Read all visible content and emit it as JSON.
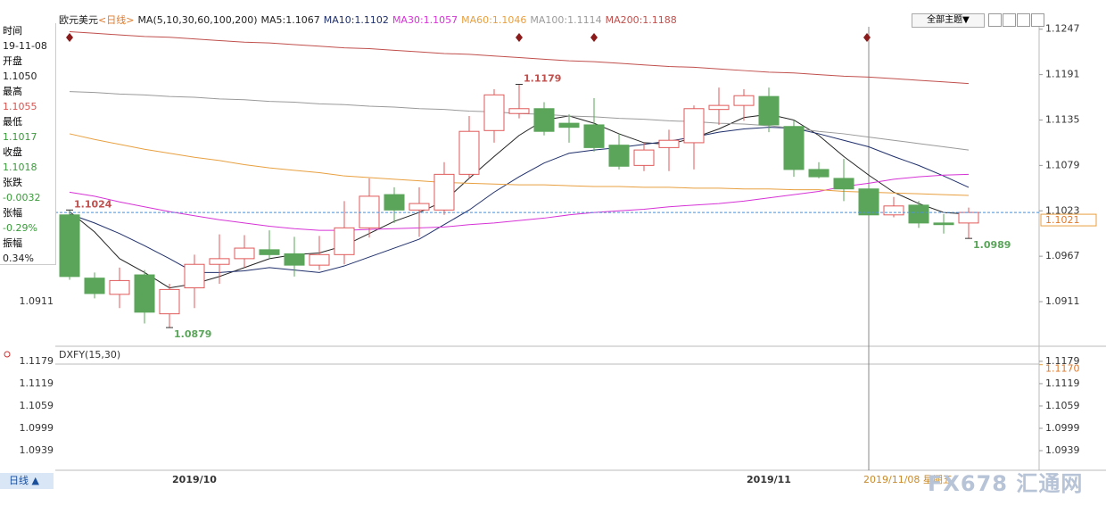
{
  "header": {
    "symbol": "欧元美元",
    "period": "<日线>",
    "indicator": "MA(5,10,30,60,100,200)",
    "toolbar": "全部主题▼"
  },
  "info_panel": {
    "rows": [
      {
        "label": "时间",
        "value": "19-11-08",
        "color": "#222222"
      },
      {
        "label": "开盘",
        "value": "1.1050",
        "color": "#222222"
      },
      {
        "label": "最高",
        "value": "1.1055",
        "color": "#d9534f"
      },
      {
        "label": "最低",
        "value": "1.1017",
        "color": "#3a9a3a"
      },
      {
        "label": "收盘",
        "value": "1.1018",
        "color": "#3a9a3a"
      },
      {
        "label": "张跌",
        "value": "-0.0032",
        "color": "#3a9a3a"
      },
      {
        "label": "张幅",
        "value": "-0.29%",
        "color": "#3a9a3a"
      },
      {
        "label": "振幅",
        "value": "0.34%",
        "color": "#222222"
      }
    ]
  },
  "chart_data": [
    {
      "type": "candlestick",
      "categories": [
        null,
        null,
        null,
        null,
        null,
        "2019/10",
        null,
        null,
        null,
        null,
        null,
        null,
        null,
        null,
        null,
        null,
        null,
        null,
        null,
        null,
        null,
        null,
        null,
        null,
        null,
        null,
        null,
        null,
        "2019/11",
        null,
        null,
        null,
        null,
        null,
        null,
        null,
        null
      ],
      "open": [
        1.1018,
        1.094,
        1.092,
        1.0944,
        1.0896,
        1.0928,
        1.0957,
        1.0964,
        1.0975,
        1.097,
        1.0956,
        1.0969,
        1.1002,
        1.1043,
        1.1024,
        1.1024,
        1.1068,
        1.1122,
        1.1143,
        1.1149,
        1.1131,
        1.1129,
        1.1104,
        1.1079,
        1.1101,
        1.1107,
        1.1148,
        1.1153,
        1.1164,
        1.1127,
        1.1074,
        1.1063,
        1.105,
        1.1018,
        1.103,
        1.1008,
        1.1008
      ],
      "high": [
        1.1024,
        1.0947,
        1.0953,
        1.095,
        1.0933,
        1.0969,
        1.0994,
        1.0993,
        1.0999,
        1.0991,
        1.0992,
        1.1035,
        1.1063,
        1.1052,
        1.1052,
        1.1083,
        1.114,
        1.1173,
        1.1179,
        1.1157,
        1.1142,
        1.1162,
        1.1118,
        1.1107,
        1.1123,
        1.1153,
        1.1175,
        1.1173,
        1.1175,
        1.1135,
        1.1083,
        1.1087,
        1.1055,
        1.104,
        1.1035,
        1.1019,
        1.1027
      ],
      "low": [
        1.0938,
        1.0915,
        1.0903,
        1.0884,
        1.0879,
        1.0903,
        1.0933,
        1.0953,
        1.0964,
        1.0942,
        1.095,
        1.0957,
        1.099,
        1.1008,
        1.0991,
        1.1018,
        1.1063,
        1.1107,
        1.1137,
        1.1116,
        1.1107,
        1.1096,
        1.1074,
        1.1072,
        1.1072,
        1.1074,
        1.1129,
        1.1134,
        1.112,
        1.1065,
        1.1063,
        1.1035,
        1.1017,
        1.1015,
        1.1002,
        1.0995,
        1.0989
      ],
      "close": [
        1.0942,
        1.0921,
        1.0937,
        1.0898,
        1.0926,
        1.0957,
        1.0964,
        1.0977,
        1.0969,
        1.0956,
        1.0969,
        1.1002,
        1.1041,
        1.1024,
        1.1032,
        1.1068,
        1.1121,
        1.1166,
        1.1149,
        1.1121,
        1.1126,
        1.1101,
        1.1078,
        1.1098,
        1.111,
        1.1149,
        1.1153,
        1.1165,
        1.1129,
        1.1074,
        1.1065,
        1.105,
        1.1018,
        1.1029,
        1.1008,
        1.1006,
        1.1021
      ],
      "up_color": "#e05a5a",
      "down_color": "#5aa55a",
      "series": [
        {
          "name": "MA5",
          "label": "MA5:1.1067",
          "color": "#222222",
          "values": [
            1.1022,
            1.0997,
            1.0964,
            1.0947,
            1.0928,
            1.0933,
            1.0942,
            1.0953,
            1.0964,
            1.0969,
            1.0971,
            1.098,
            1.0995,
            1.101,
            1.1021,
            1.1035,
            1.1063,
            1.109,
            1.1116,
            1.1135,
            1.114,
            1.1131,
            1.1118,
            1.1107,
            1.1105,
            1.1113,
            1.1124,
            1.1138,
            1.1142,
            1.1135,
            1.1116,
            1.109,
            1.1067,
            1.1046,
            1.1032,
            1.1021,
            1.1019
          ]
        },
        {
          "name": "MA10",
          "label": "MA10:1.1102",
          "color": "#1f2f6b",
          "values": [
            1.1019,
            1.1008,
            1.0995,
            1.098,
            1.0964,
            1.0947,
            1.0947,
            1.0949,
            1.0953,
            1.095,
            1.0947,
            1.0955,
            1.0966,
            1.0977,
            1.0988,
            1.1006,
            1.1024,
            1.1046,
            1.1065,
            1.1082,
            1.1094,
            1.1098,
            1.1101,
            1.1105,
            1.1109,
            1.1114,
            1.112,
            1.1124,
            1.1126,
            1.1125,
            1.1118,
            1.111,
            1.1102,
            1.109,
            1.1079,
            1.1066,
            1.1052
          ]
        },
        {
          "name": "MA30",
          "label": "MA30:1.1057",
          "color": "#d633d6",
          "values": [
            1.1046,
            1.1041,
            1.1034,
            1.1028,
            1.1022,
            1.1017,
            1.1012,
            1.1008,
            1.1004,
            1.1001,
            1.0999,
            1.0999,
            1.1,
            1.1001,
            1.1002,
            1.1003,
            1.1006,
            1.1008,
            1.1011,
            1.1014,
            1.1018,
            1.1021,
            1.1023,
            1.1025,
            1.1028,
            1.103,
            1.1032,
            1.1035,
            1.1039,
            1.1043,
            1.1047,
            1.1053,
            1.1057,
            1.1062,
            1.1065,
            1.1067,
            1.1068
          ]
        },
        {
          "name": "MA60",
          "label": "MA60:1.1046",
          "color": "#e8a040",
          "values": [
            1.1118,
            1.1111,
            1.1105,
            1.1099,
            1.1094,
            1.1089,
            1.1085,
            1.108,
            1.1076,
            1.1073,
            1.107,
            1.1066,
            1.1064,
            1.1062,
            1.106,
            1.1058,
            1.1057,
            1.1056,
            1.1055,
            1.1055,
            1.1054,
            1.1053,
            1.1053,
            1.1052,
            1.1052,
            1.1051,
            1.1051,
            1.105,
            1.105,
            1.1049,
            1.1049,
            1.1047,
            1.1046,
            1.1045,
            1.1044,
            1.1043,
            1.1042
          ]
        },
        {
          "name": "MA100",
          "label": "MA100:1.1114",
          "color": "#9a9a9a",
          "values": [
            1.117,
            1.1169,
            1.1167,
            1.1166,
            1.1164,
            1.1163,
            1.1161,
            1.116,
            1.1158,
            1.1157,
            1.1155,
            1.1154,
            1.1152,
            1.1151,
            1.1149,
            1.1148,
            1.1146,
            1.1145,
            1.1143,
            1.1142,
            1.114,
            1.1139,
            1.1137,
            1.1136,
            1.1134,
            1.1133,
            1.1131,
            1.113,
            1.1128,
            1.1125,
            1.1121,
            1.1118,
            1.1114,
            1.111,
            1.1106,
            1.1102,
            1.1098
          ]
        },
        {
          "name": "MA200",
          "label": "MA200:1.1188",
          "color": "#c0504d",
          "values": [
            1.1244,
            1.1242,
            1.124,
            1.1238,
            1.1237,
            1.1235,
            1.1233,
            1.1231,
            1.123,
            1.1228,
            1.1226,
            1.1224,
            1.1223,
            1.1221,
            1.1219,
            1.1217,
            1.1216,
            1.1214,
            1.1212,
            1.121,
            1.1208,
            1.1207,
            1.1205,
            1.1203,
            1.1201,
            1.12,
            1.1198,
            1.1196,
            1.1194,
            1.1193,
            1.1191,
            1.1189,
            1.1188,
            1.1186,
            1.1184,
            1.1182,
            1.118
          ]
        }
      ],
      "ylim": [
        1.0856,
        1.1261
      ],
      "yticks": [
        1.0911,
        1.0967,
        1.1023,
        1.1079,
        1.1135,
        1.1191,
        1.1247
      ],
      "grid": false,
      "annotations": [
        1.1024,
        1.1179,
        1.0879,
        1.0989
      ],
      "last_price": 1.1021,
      "crosshair_label": "2019/11/08 星期五"
    },
    {
      "type": "indicator",
      "title": "DXFY(15,30)",
      "ylim": [
        1.0891,
        1.121
      ],
      "yticks": [
        1.0939,
        1.0999,
        1.1059,
        1.1119,
        1.1179
      ],
      "last_value": {
        "value": 1.117,
        "label": "1.1170"
      },
      "grid": false
    }
  ],
  "footer": {
    "period_button": "日线 ▲",
    "watermark": "FX678 汇通网"
  }
}
